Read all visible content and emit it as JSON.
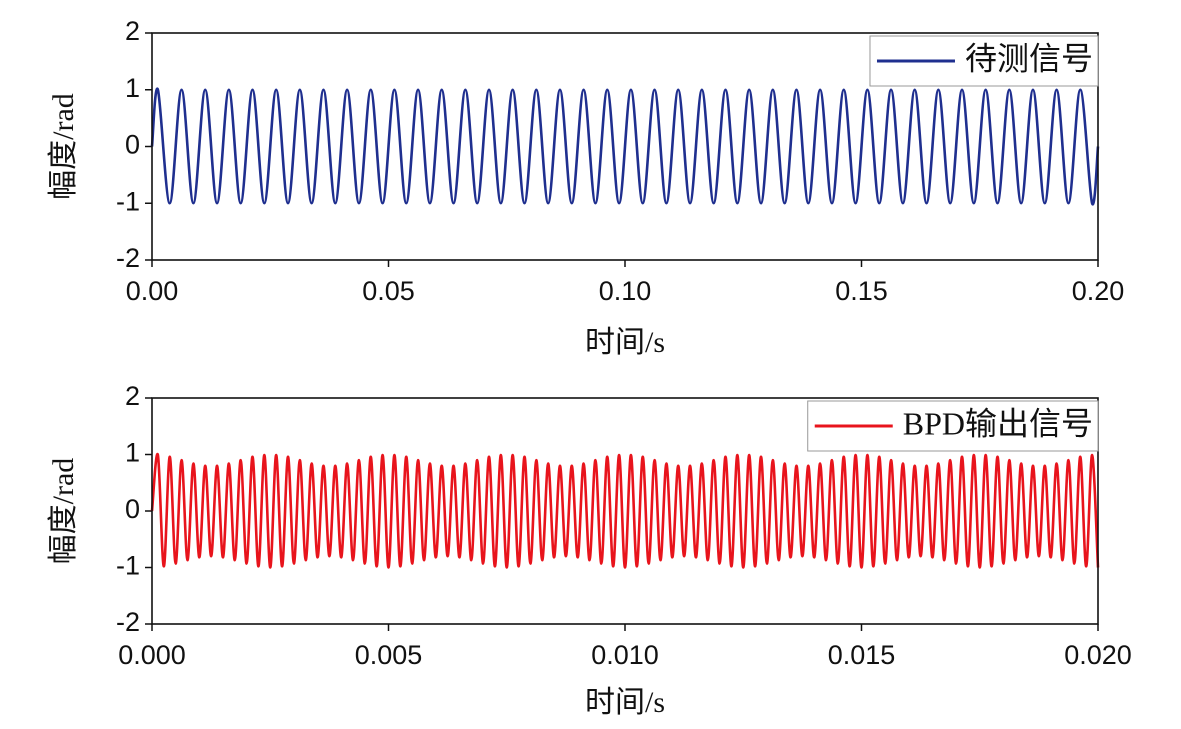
{
  "chart_data": [
    {
      "type": "line",
      "xlabel": "时间/s",
      "ylabel": "幅度/rad",
      "legend": "upper right",
      "xlim": [
        0,
        0.2
      ],
      "ylim": [
        -2,
        2
      ],
      "xticks": [
        {
          "value": 0,
          "label": "0.00"
        },
        0.05,
        {
          "value": 0.1,
          "label": "0.10"
        },
        0.15,
        {
          "value": 0.2,
          "label": "0.20"
        }
      ],
      "yticks": [
        -2,
        -1,
        0,
        1,
        2
      ],
      "x": [
        0,
        0.00125,
        0.00375,
        0.00625,
        0.00875,
        0.01125,
        0.01375,
        0.01625,
        0.01875,
        0.02125,
        0.02375,
        0.02625,
        0.02875,
        0.03125,
        0.03375,
        0.03625,
        0.03875,
        0.04125,
        0.04375,
        0.04625,
        0.04875,
        0.05125,
        0.05375,
        0.05625,
        0.05875,
        0.06125,
        0.06375,
        0.06625,
        0.06875,
        0.07125,
        0.07375,
        0.07625,
        0.07875,
        0.08125,
        0.08375,
        0.08625,
        0.08875,
        0.09125,
        0.09375,
        0.09625,
        0.09875,
        0.10125,
        0.10375,
        0.10625,
        0.10875,
        0.11125,
        0.11375,
        0.11625,
        0.11875,
        0.12125,
        0.12375,
        0.12625,
        0.12875,
        0.13125,
        0.13375,
        0.13625,
        0.13875,
        0.14125,
        0.14375,
        0.14625,
        0.14875,
        0.15125,
        0.15375,
        0.15625,
        0.15875,
        0.16125,
        0.16375,
        0.16625,
        0.16875,
        0.17125,
        0.17375,
        0.17625,
        0.17875,
        0.18125,
        0.18375,
        0.18625,
        0.18875,
        0.19125,
        0.19375,
        0.19625,
        0.19875,
        0.2
      ],
      "series": [
        {
          "name": "待测信号",
          "color": "#1f2f8f",
          "values": [
            0,
            1,
            -1,
            1,
            -1,
            1,
            -1,
            1,
            -1,
            1,
            -1,
            1,
            -1,
            1,
            -1,
            1,
            -1,
            1,
            -1,
            1,
            -1,
            1,
            -1,
            1,
            -1,
            1,
            -1,
            1,
            -1,
            1,
            -1,
            1,
            -1,
            1,
            -1,
            1,
            -1,
            1,
            -1,
            1,
            -1,
            1,
            -1,
            1,
            -1,
            1,
            -1,
            1,
            -1,
            1,
            -1,
            1,
            -1,
            1,
            -1,
            1,
            -1,
            1,
            -1,
            1,
            -1,
            1,
            -1,
            1,
            -1,
            1,
            -1,
            1,
            -1,
            1,
            -1,
            1,
            -1,
            1,
            -1,
            1,
            -1,
            1,
            -1,
            1,
            -1,
            0
          ]
        }
      ]
    },
    {
      "type": "line",
      "xlabel": "时间/s",
      "ylabel": "幅度/rad",
      "legend": "upper right",
      "xlim": [
        0,
        0.02
      ],
      "ylim": [
        -2,
        2
      ],
      "xticks": [
        {
          "value": 0,
          "label": "0.000"
        },
        0.005,
        {
          "value": 0.01,
          "label": "0.010"
        },
        0.015,
        {
          "value": 0.02,
          "label": "0.020"
        }
      ],
      "yticks": [
        -2,
        -1,
        0,
        1,
        2
      ],
      "x": [
        0,
        0.000125,
        0.00025,
        0.000375,
        0.0005,
        0.000625,
        0.00075,
        0.000875,
        0.001,
        0.001125,
        0.00125,
        0.001375,
        0.0015,
        0.001625,
        0.00175,
        0.001875,
        0.002,
        0.002125,
        0.00225,
        0.002375,
        0.0025,
        0.002625,
        0.00275,
        0.002875,
        0.003,
        0.003125,
        0.00325,
        0.003375,
        0.0035,
        0.003625,
        0.00375,
        0.003875,
        0.004,
        0.004125,
        0.00425,
        0.004375,
        0.0045,
        0.004625,
        0.00475,
        0.004875,
        0.005,
        0.005125,
        0.00525,
        0.005375,
        0.0055,
        0.005625,
        0.00575,
        0.005875,
        0.006,
        0.006125,
        0.00625,
        0.006375,
        0.0065,
        0.006625,
        0.00675,
        0.006875,
        0.007,
        0.007125,
        0.00725,
        0.007375,
        0.0075,
        0.007625,
        0.00775,
        0.007875,
        0.008,
        0.008125,
        0.00825,
        0.008375,
        0.0085,
        0.008625,
        0.00875,
        0.008875,
        0.009,
        0.009125,
        0.00925,
        0.009375,
        0.0095,
        0.009625,
        0.00975,
        0.009875,
        0.01,
        0.010125,
        0.01025,
        0.010375,
        0.0105,
        0.010625,
        0.01075,
        0.010875,
        0.011,
        0.011125,
        0.01125,
        0.011375,
        0.0115,
        0.011625,
        0.01175,
        0.011875,
        0.012,
        0.012125,
        0.01225,
        0.012375,
        0.0125,
        0.012625,
        0.01275,
        0.012875,
        0.013,
        0.013125,
        0.01325,
        0.013375,
        0.0135,
        0.013625,
        0.01375,
        0.013875,
        0.014,
        0.014125,
        0.01425,
        0.014375,
        0.0145,
        0.014625,
        0.01475,
        0.014875,
        0.015,
        0.015125,
        0.01525,
        0.015375,
        0.0155,
        0.015625,
        0.01575,
        0.015875,
        0.016,
        0.016125,
        0.01625,
        0.016375,
        0.0165,
        0.016625,
        0.01675,
        0.016875,
        0.017,
        0.017125,
        0.01725,
        0.017375,
        0.0175,
        0.017625,
        0.01775,
        0.017875,
        0.018,
        0.018125,
        0.01825,
        0.018375,
        0.0185,
        0.018625,
        0.01875,
        0.018875,
        0.019,
        0.019125,
        0.01925,
        0.019375,
        0.0195,
        0.019625,
        0.01975,
        0.019875,
        0.02
      ],
      "series": [
        {
          "name": "BPD输出信号",
          "color": "#e8141c",
          "values": [
            0,
            0.99,
            -0.98,
            0.96,
            -0.93,
            0.9,
            -0.87,
            0.84,
            -0.82,
            0.8,
            -0.8,
            0.8,
            -0.82,
            0.84,
            -0.87,
            0.9,
            -0.93,
            0.96,
            -0.98,
            0.99,
            -1,
            0.99,
            -0.98,
            0.96,
            -0.93,
            0.9,
            -0.87,
            0.84,
            -0.82,
            0.8,
            -0.8,
            0.8,
            -0.82,
            0.84,
            -0.87,
            0.9,
            -0.93,
            0.96,
            -0.98,
            0.99,
            -1,
            0.99,
            -0.98,
            0.96,
            -0.93,
            0.9,
            -0.87,
            0.84,
            -0.82,
            0.8,
            -0.8,
            0.8,
            -0.82,
            0.84,
            -0.87,
            0.9,
            -0.93,
            0.96,
            -0.98,
            0.99,
            -1,
            0.99,
            -0.98,
            0.96,
            -0.93,
            0.9,
            -0.87,
            0.84,
            -0.82,
            0.8,
            -0.8,
            0.8,
            -0.82,
            0.84,
            -0.87,
            0.9,
            -0.93,
            0.96,
            -0.98,
            0.99,
            -1,
            0.99,
            -0.98,
            0.96,
            -0.93,
            0.9,
            -0.87,
            0.84,
            -0.82,
            0.8,
            -0.8,
            0.8,
            -0.82,
            0.84,
            -0.87,
            0.9,
            -0.93,
            0.96,
            -0.98,
            0.99,
            -1,
            0.99,
            -0.98,
            0.96,
            -0.93,
            0.9,
            -0.87,
            0.84,
            -0.82,
            0.8,
            -0.8,
            0.8,
            -0.82,
            0.84,
            -0.87,
            0.9,
            -0.93,
            0.96,
            -0.98,
            0.99,
            -1,
            0.99,
            -0.98,
            0.96,
            -0.93,
            0.9,
            -0.87,
            0.84,
            -0.82,
            0.8,
            -0.8,
            0.8,
            -0.82,
            0.84,
            -0.87,
            0.9,
            -0.93,
            0.96,
            -0.98,
            0.99,
            -1,
            0.99,
            -0.98,
            0.96,
            -0.93,
            0.9,
            -0.87,
            0.84,
            -0.82,
            0.8,
            -0.8,
            0.8,
            -0.82,
            0.84,
            -0.87,
            0.9,
            -0.93,
            0.96,
            -0.98,
            0.99,
            -1
          ]
        }
      ]
    }
  ]
}
